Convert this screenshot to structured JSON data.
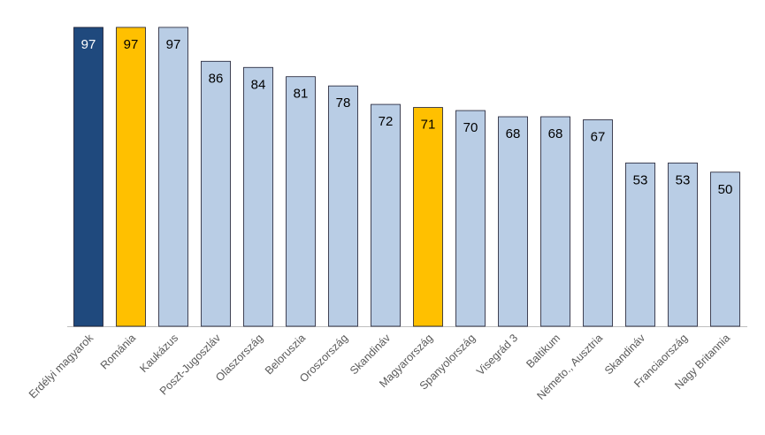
{
  "chart_data": {
    "type": "bar",
    "title": "",
    "xlabel": "",
    "ylabel": "",
    "ylim": [
      0,
      100
    ],
    "grid": false,
    "categories": [
      "Erdélyi magyarok",
      "Románia",
      "Kaukázus",
      "Poszt-Jugoszláv",
      "Olaszország",
      "Beloruszia",
      "Oroszország",
      "Skandináv",
      "Magyarország",
      "Spanyolország",
      "Visegrád 3",
      "Baltikum",
      "Németo., Ausztria",
      "Skandináv",
      "Franciaország",
      "Nagy Britannia"
    ],
    "values": [
      97,
      97,
      97,
      86,
      84,
      81,
      78,
      72,
      71,
      70,
      68,
      68,
      67,
      53,
      53,
      50
    ],
    "bar_types": [
      "dark",
      "gold",
      "light",
      "light",
      "light",
      "light",
      "light",
      "light",
      "gold",
      "light",
      "light",
      "light",
      "light",
      "light",
      "light",
      "light"
    ],
    "colors": {
      "dark": "#1F497D",
      "gold": "#FFC000",
      "light": "#B9CDE5",
      "border": "#1a1a2e",
      "axis": "#BFBFBF",
      "label_on_dark": "#FFFFFF",
      "label_default": "#000000"
    }
  }
}
